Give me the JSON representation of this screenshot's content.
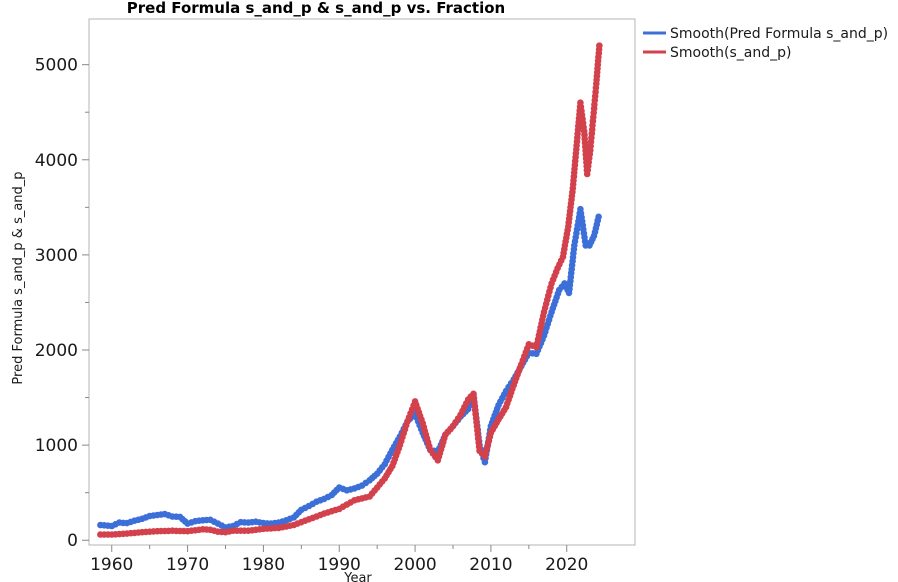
{
  "chart_data": {
    "type": "scatter",
    "title": "Pred Formula s_and_p & s_and_p vs. Fraction",
    "xlabel": "Year",
    "ylabel": "Pred Formula s_and_p & s_and_p",
    "xlim": [
      1957,
      2029
    ],
    "ylim": [
      -50,
      5480
    ],
    "x_ticks": [
      1960,
      1970,
      1980,
      1990,
      2000,
      2010,
      2020
    ],
    "y_ticks": [
      0,
      1000,
      2000,
      3000,
      4000,
      5000
    ],
    "legend_position": "top-right",
    "grid": false,
    "series": [
      {
        "name": "Smooth(Pred Formula s_and_p)",
        "color": "#3d6fd9",
        "x": [
          1958.5,
          1960,
          1961,
          1962,
          1963,
          1964,
          1965,
          1966,
          1967,
          1968,
          1969,
          1970,
          1971,
          1972,
          1973,
          1974,
          1975,
          1976,
          1977,
          1978,
          1979,
          1980,
          1981,
          1982,
          1983,
          1984,
          1985,
          1986,
          1987,
          1988,
          1989,
          1990,
          1991,
          1992,
          1993,
          1994,
          1995,
          1996,
          1997,
          1998,
          1999,
          2000,
          2001,
          2002,
          2003,
          2004,
          2005,
          2006,
          2007,
          2007.7,
          2008.5,
          2009.2,
          2010,
          2011,
          2012,
          2013,
          2014,
          2015,
          2016,
          2017,
          2018,
          2019,
          2019.7,
          2020.3,
          2021,
          2021.8,
          2022.5,
          2023,
          2023.6,
          2024.2
        ],
        "y": [
          160,
          150,
          185,
          180,
          205,
          225,
          255,
          265,
          275,
          250,
          245,
          175,
          200,
          210,
          215,
          175,
          135,
          150,
          190,
          185,
          195,
          180,
          175,
          185,
          210,
          240,
          320,
          360,
          405,
          435,
          475,
          555,
          525,
          545,
          575,
          630,
          700,
          800,
          950,
          1090,
          1250,
          1330,
          1130,
          950,
          930,
          1110,
          1200,
          1300,
          1380,
          1530,
          1000,
          820,
          1200,
          1420,
          1570,
          1690,
          1830,
          1970,
          1960,
          2150,
          2400,
          2630,
          2700,
          2600,
          3100,
          3480,
          3100,
          3100,
          3200,
          3400
        ]
      },
      {
        "name": "Smooth(s_and_p)",
        "color": "#d2414c",
        "x": [
          1958.5,
          1960,
          1962,
          1964,
          1966,
          1968,
          1970,
          1972,
          1973,
          1974,
          1975,
          1976,
          1978,
          1980,
          1982,
          1984,
          1986,
          1988,
          1990,
          1992,
          1994,
          1996,
          1997,
          1998,
          1999,
          2000,
          2001,
          2002,
          2003,
          2004,
          2005,
          2006,
          2007,
          2007.7,
          2008.5,
          2009.2,
          2010,
          2011,
          2012,
          2013,
          2014,
          2015,
          2016,
          2017,
          2018,
          2018.8,
          2019.5,
          2020.2,
          2020.8,
          2021.3,
          2021.8,
          2022.3,
          2022.7,
          2023.1,
          2023.5,
          2023.9,
          2024.3
        ],
        "y": [
          60,
          60,
          70,
          85,
          95,
          100,
          95,
          115,
          110,
          90,
          85,
          100,
          100,
          120,
          130,
          160,
          220,
          280,
          330,
          420,
          460,
          650,
          780,
          1000,
          1250,
          1460,
          1230,
          950,
          840,
          1110,
          1200,
          1320,
          1480,
          1540,
          940,
          880,
          1130,
          1270,
          1400,
          1630,
          1850,
          2060,
          2030,
          2400,
          2700,
          2860,
          2980,
          3300,
          3700,
          4150,
          4600,
          4300,
          3850,
          4100,
          4450,
          4800,
          5200
        ]
      }
    ]
  }
}
